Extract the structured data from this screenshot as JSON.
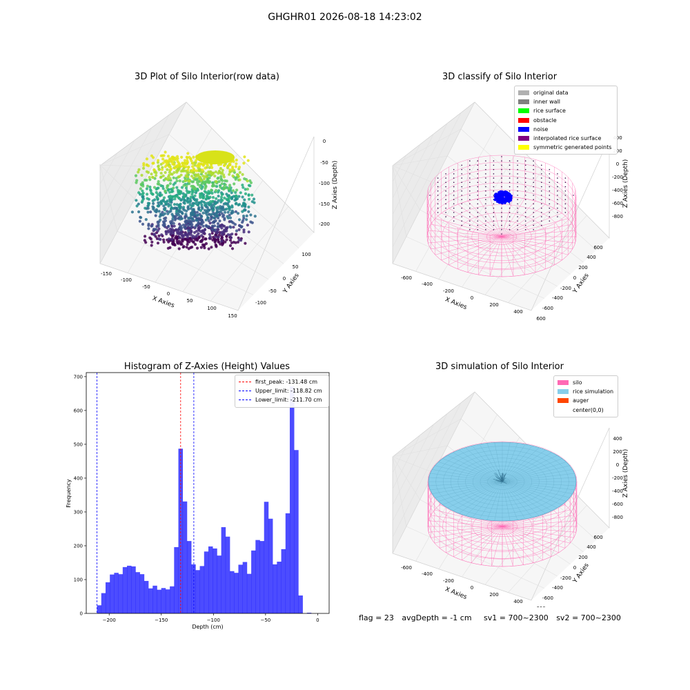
{
  "page": {
    "suptitle": "GHGHR01 2026-08-18 14:23:02"
  },
  "panels": {
    "raw": {
      "title": "3D Plot of Silo Interior(row data)",
      "xlabel": "X Axies",
      "ylabel": "Y Axies",
      "zlabel": "Z Axies (Depth)",
      "xticks": [
        "-150",
        "-100",
        "-50",
        "0",
        "50",
        "100",
        "150"
      ],
      "yticks": [
        "-100",
        "-50",
        "0",
        "50",
        "100"
      ],
      "zticks": [
        "0",
        "-50",
        "-100",
        "-150",
        "-200"
      ]
    },
    "classify": {
      "title": "3D classify of Silo Interior",
      "xlabel": "X Axies",
      "ylabel": "Y Axies",
      "zlabel": "Z Axies (Depth)",
      "xticks": [
        "-600",
        "-400",
        "-200",
        "0",
        "200",
        "400",
        "600"
      ],
      "yticks": [
        "-600",
        "-400",
        "-200",
        "0",
        "200",
        "400",
        "600"
      ],
      "zticks": [
        "200",
        "0",
        "-200",
        "-400",
        "-600",
        "-800"
      ],
      "zticks_top": "400",
      "legend": [
        {
          "label": "original data",
          "color": "#b0b0b0"
        },
        {
          "label": "inner wall",
          "color": "#808080"
        },
        {
          "label": "rice surface",
          "color": "#00ff00"
        },
        {
          "label": "obstacle",
          "color": "#ff0000"
        },
        {
          "label": "noise",
          "color": "#0000ff"
        },
        {
          "label": "interpolated rice surface",
          "color": "#800080"
        },
        {
          "label": "symmetric generated points",
          "color": "#ffff00"
        }
      ]
    },
    "simulation": {
      "title": "3D simulation of Silo Interior",
      "xlabel": "X Axies",
      "ylabel": "Y Axies",
      "zlabel": "Z Axies (Depth)",
      "xticks": [
        "-600",
        "-400",
        "-200",
        "0",
        "200",
        "400",
        "600"
      ],
      "yticks": [
        "-600",
        "-400",
        "-200",
        "0",
        "200",
        "400",
        "600"
      ],
      "zticks": [
        "400",
        "200",
        "0",
        "-200",
        "-400",
        "-600",
        "-800"
      ],
      "legend": [
        {
          "label": "silo",
          "color": "#ff69b4"
        },
        {
          "label": "rice simulation",
          "color": "#87ceeb"
        },
        {
          "label": "auger",
          "color": "#ff4500"
        },
        {
          "label": "center(0,0)",
          "color": ""
        }
      ]
    }
  },
  "status": {
    "flag": "flag = 23",
    "avg_depth": "avgDepth = -1 cm",
    "sv1": "sv1 = 700~2300",
    "sv2": "sv2 = 700~2300"
  },
  "colors": {
    "histogram": "#0000ff",
    "peak_line": "#ff0000",
    "limit_line": "#0000ff",
    "silo": "#ff69b4",
    "rice": "#87ceeb"
  },
  "chart_data": [
    {
      "type": "scatter",
      "title": "3D Plot of Silo Interior(row data)",
      "xlabel": "X Axies",
      "ylabel": "Y Axies",
      "zlabel": "Z Axies (Depth)",
      "xlim": [
        -150,
        150
      ],
      "ylim": [
        -120,
        120
      ],
      "zlim": [
        -230,
        0
      ],
      "colormap": "viridis"
    },
    {
      "type": "scatter",
      "title": "3D classify of Silo Interior",
      "xlabel": "X Axies",
      "ylabel": "Y Axies",
      "zlabel": "Z Axies (Depth)",
      "xlim": [
        -700,
        700
      ],
      "ylim": [
        -700,
        700
      ],
      "zlim": [
        -900,
        400
      ],
      "legend": [
        "original data",
        "inner wall",
        "rice surface",
        "obstacle",
        "noise",
        "interpolated rice surface",
        "symmetric generated points"
      ]
    },
    {
      "type": "bar",
      "title": "Histogram of Z-Axies (Height) Values",
      "xlabel": "Depth (cm)",
      "ylabel": "Frequency",
      "xlim": [
        -222,
        11
      ],
      "ylim": [
        0,
        712
      ],
      "xticks": [
        -200,
        -150,
        -100,
        -50,
        0
      ],
      "yticks": [
        0,
        100,
        200,
        300,
        400,
        500,
        600,
        700
      ],
      "bin_start": -211.7,
      "bin_width": 4.11,
      "values": [
        24,
        60,
        92,
        115,
        120,
        116,
        137,
        141,
        139,
        122,
        116,
        96,
        74,
        82,
        70,
        75,
        71,
        80,
        196,
        487,
        331,
        214,
        145,
        128,
        140,
        183,
        198,
        192,
        171,
        255,
        227,
        125,
        120,
        144,
        152,
        117,
        186,
        217,
        214,
        330,
        280,
        145,
        153,
        190,
        296,
        671,
        483,
        53,
        0,
        2
      ],
      "vlines": [
        {
          "label": "first_peak: -131.48 cm",
          "x": -131.48,
          "color": "#ff0000"
        },
        {
          "label": "Upper_limit: -118.82 cm",
          "x": -118.82,
          "color": "#0000ff"
        },
        {
          "label": "Lower_limit: -211.70 cm",
          "x": -211.7,
          "color": "#0000ff"
        }
      ],
      "legend_position": "top-right"
    },
    {
      "type": "area",
      "title": "3D simulation of Silo Interior",
      "xlabel": "X Axies",
      "ylabel": "Y Axies",
      "zlabel": "Z Axies (Depth)",
      "xlim": [
        -700,
        700
      ],
      "ylim": [
        -700,
        700
      ],
      "zlim": [
        -900,
        500
      ],
      "legend": [
        "silo",
        "rice simulation",
        "auger",
        "center(0,0)"
      ]
    }
  ]
}
